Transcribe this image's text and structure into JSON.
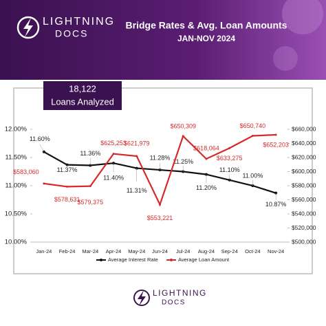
{
  "header": {
    "brand_top": "LIGHTNING",
    "brand_bottom": "DOCS"
  },
  "badge": {
    "value": "18,122",
    "label": "Loans Analyzed"
  },
  "footer": {
    "brand_top": "LIGHTNING",
    "brand_bottom": "DOCS"
  },
  "chart_data": {
    "type": "line",
    "title": "Bridge Rates & Avg. Loan Amounts",
    "subtitle": "JAN-NOV 2024",
    "categories": [
      "Jan-24",
      "Feb-24",
      "Mar-24",
      "Apr-24",
      "May-24",
      "Jun-24",
      "Jul-24",
      "Aug-24",
      "Sep-24",
      "Oct-24",
      "Nov-24"
    ],
    "series": [
      {
        "name": "Average Interest Rate",
        "color": "#111111",
        "axis": "y",
        "values": [
          11.6,
          11.37,
          11.36,
          11.4,
          11.31,
          11.28,
          11.25,
          11.2,
          11.1,
          11.0,
          10.87
        ],
        "value_labels": [
          "11.60%",
          "11.37%",
          "11.36%",
          "11.40%",
          "11.31%",
          "11.28%",
          "11.25%",
          "11.20%",
          "11.10%",
          "11.00%",
          "10.87%"
        ]
      },
      {
        "name": "Average Loan Amount",
        "color": "#d42a2a",
        "axis": "y2",
        "values": [
          583060,
          578631,
          579375,
          625253,
          621979,
          553221,
          650309,
          618064,
          633275,
          650740,
          652203
        ],
        "value_labels": [
          "$583,060",
          "$578,631",
          "$579,375",
          "$625,253",
          "$621,979",
          "$553,221",
          "$650,309",
          "$618,064",
          "$633,275",
          "$650,740",
          "$652,203"
        ]
      }
    ],
    "ylim": [
      10,
      12
    ],
    "yticks": [
      {
        "value": 10,
        "label": "10.00%"
      },
      {
        "value": 10.5,
        "label": "10.50%"
      },
      {
        "value": 11,
        "label": "11.00%"
      },
      {
        "value": 11.5,
        "label": "11.50%"
      },
      {
        "value": 12,
        "label": "12.00%"
      }
    ],
    "y2lim": [
      500000,
      660000
    ],
    "y2ticks": [
      {
        "value": 500000,
        "label": "$500,000"
      },
      {
        "value": 520000,
        "label": "$520,000"
      },
      {
        "value": 540000,
        "label": "$540,000"
      },
      {
        "value": 560000,
        "label": "$560,000"
      },
      {
        "value": 580000,
        "label": "$580,000"
      },
      {
        "value": 600000,
        "label": "$600,000"
      },
      {
        "value": 620000,
        "label": "$620,000"
      },
      {
        "value": 640000,
        "label": "$640,000"
      },
      {
        "value": 660000,
        "label": "$660,000"
      }
    ],
    "grid": false,
    "legend": "bottom"
  }
}
